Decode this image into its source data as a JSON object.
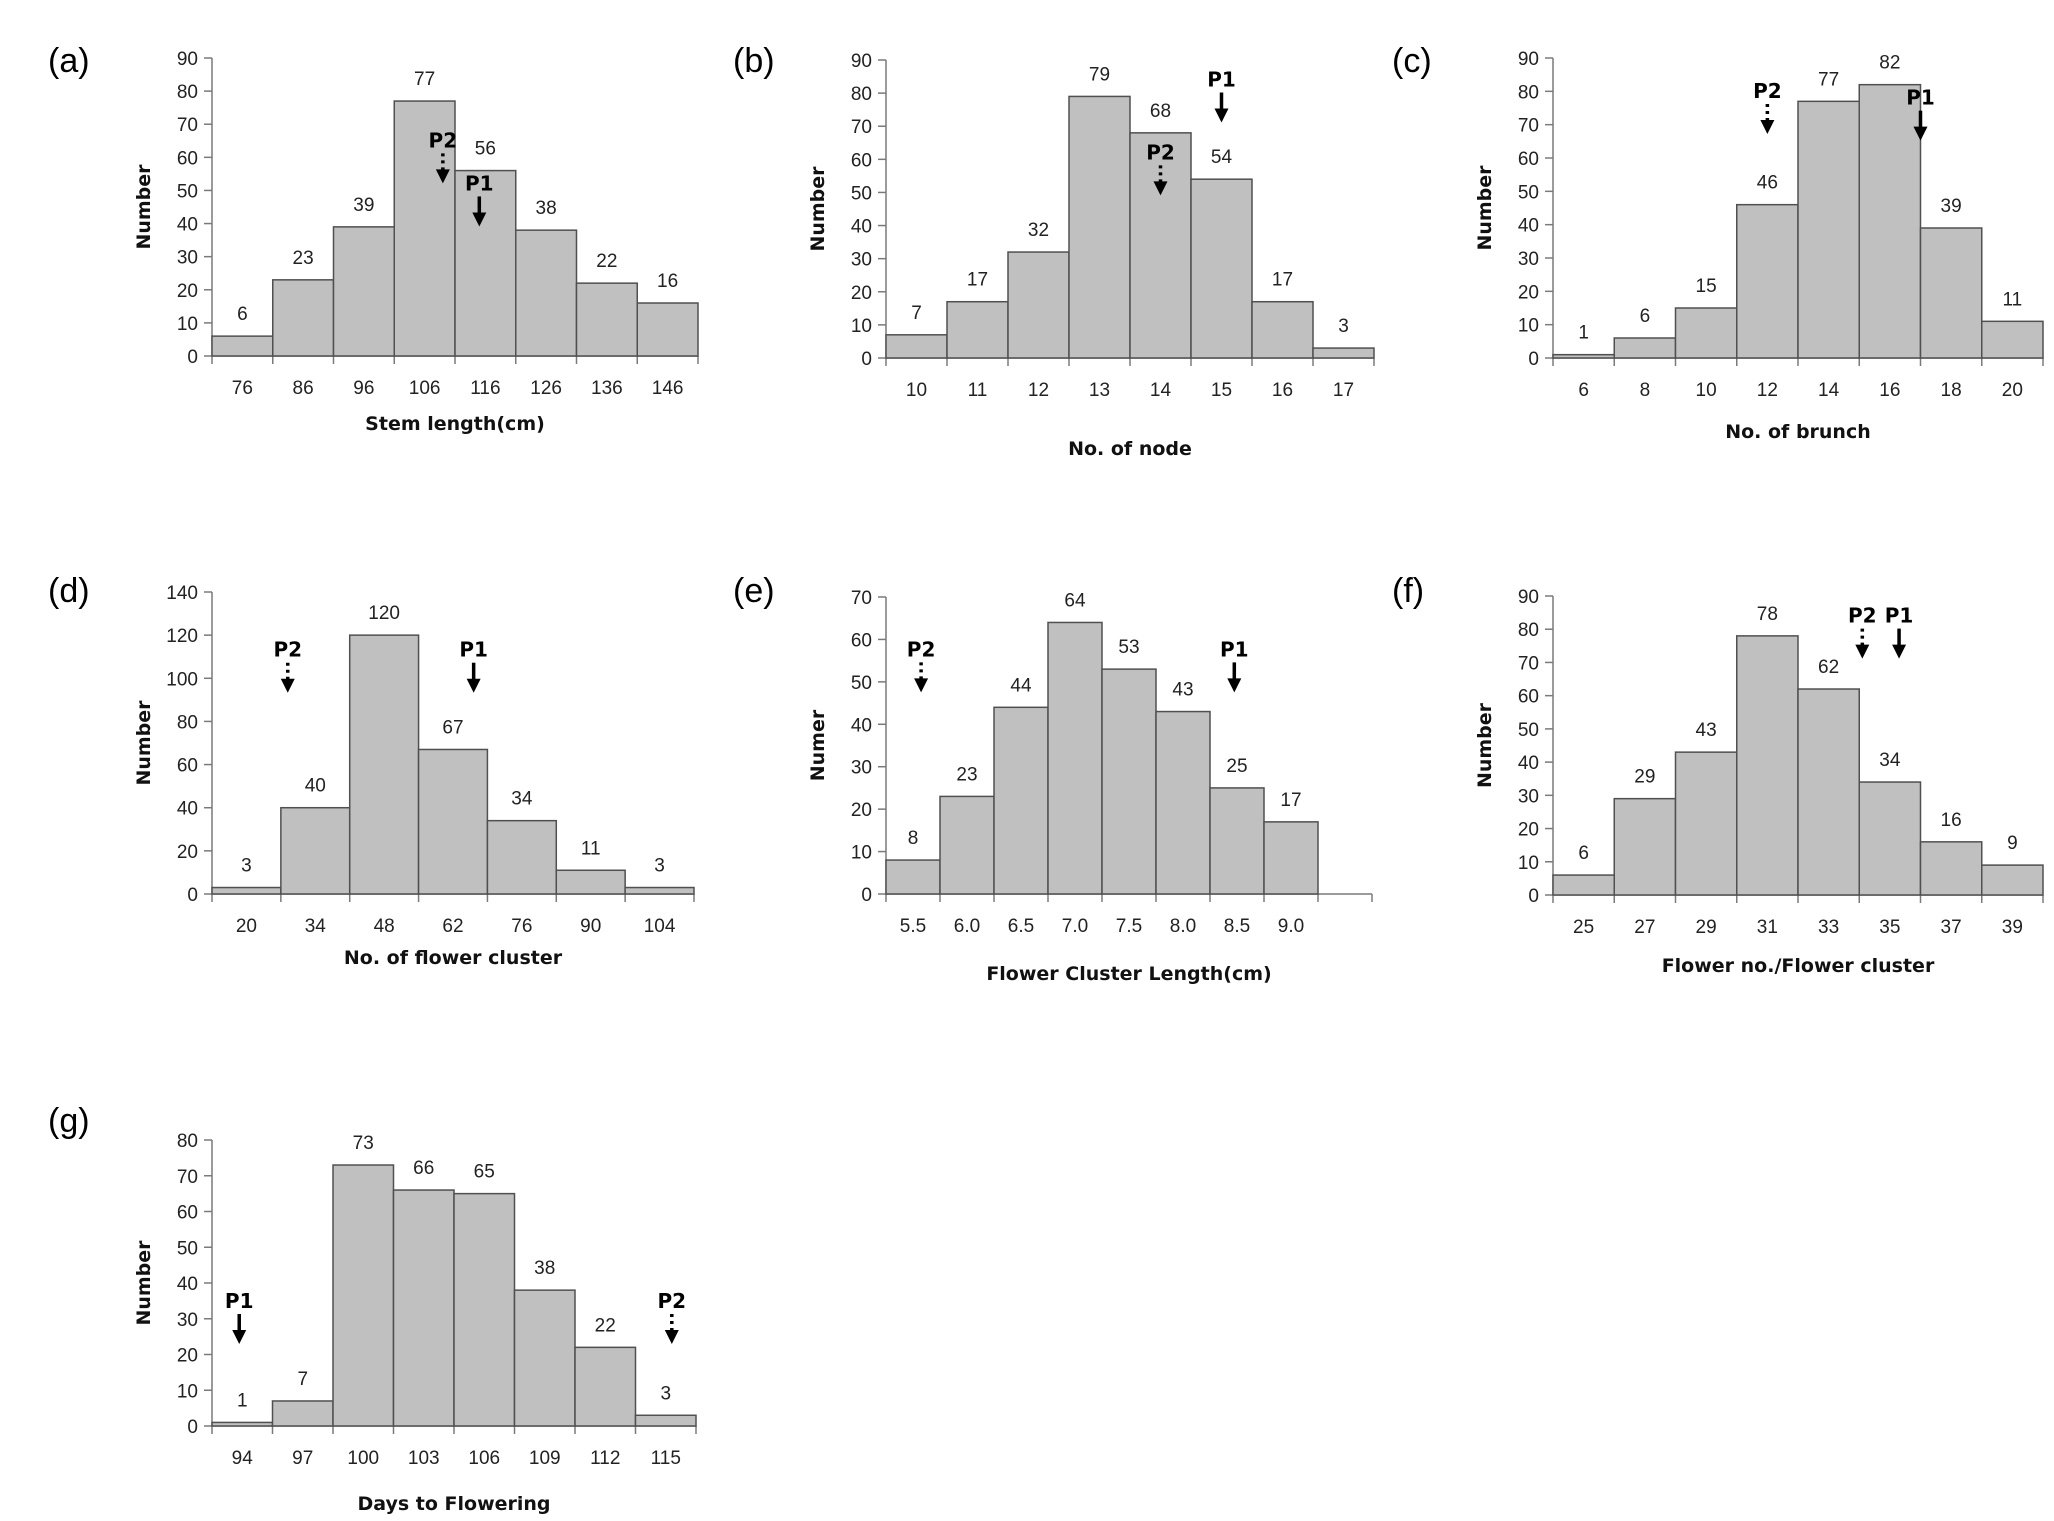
{
  "chart_data": [
    {
      "panel": "(a)",
      "type": "bar",
      "categories": [
        "76",
        "86",
        "96",
        "106",
        "116",
        "126",
        "136",
        "146"
      ],
      "values": [
        6,
        23,
        39,
        77,
        56,
        38,
        22,
        16
      ],
      "xlabel": "Stem length(cm)",
      "ylabel": "Number",
      "ylim": [
        0,
        90
      ],
      "yticks": [
        0,
        10,
        20,
        30,
        40,
        50,
        60,
        70,
        80,
        90
      ],
      "markers": [
        {
          "label": "P2",
          "style": "dotted",
          "x": 3.8,
          "y": 63
        },
        {
          "label": "P1",
          "style": "solid",
          "x": 4.4,
          "y": 50
        }
      ]
    },
    {
      "panel": "(b)",
      "type": "bar",
      "categories": [
        "10",
        "11",
        "12",
        "13",
        "14",
        "15",
        "16",
        "17"
      ],
      "values": [
        7,
        17,
        32,
        79,
        68,
        54,
        17,
        3
      ],
      "xlabel": "No. of node",
      "ylabel": "Number",
      "ylim": [
        0,
        90
      ],
      "yticks": [
        0,
        10,
        20,
        30,
        40,
        50,
        60,
        70,
        80,
        90
      ],
      "markers": [
        {
          "label": "P1",
          "style": "solid",
          "x": 5.5,
          "y": 82
        },
        {
          "label": "P2",
          "style": "dotted",
          "x": 4.5,
          "y": 60
        }
      ]
    },
    {
      "panel": "(c)",
      "type": "bar",
      "categories": [
        "6",
        "8",
        "10",
        "12",
        "14",
        "16",
        "18",
        "20"
      ],
      "values": [
        1,
        6,
        15,
        46,
        77,
        82,
        39,
        11
      ],
      "xlabel": "No. of brunch",
      "ylabel": "Number",
      "ylim": [
        0,
        90
      ],
      "yticks": [
        0,
        10,
        20,
        30,
        40,
        50,
        60,
        70,
        80,
        90
      ],
      "markers": [
        {
          "label": "P2",
          "style": "dotted",
          "x": 3.5,
          "y": 78
        },
        {
          "label": "P1",
          "style": "solid",
          "x": 6.0,
          "y": 76
        }
      ]
    },
    {
      "panel": "(d)",
      "type": "bar",
      "categories": [
        "20",
        "34",
        "48",
        "62",
        "76",
        "90",
        "104"
      ],
      "values": [
        3,
        40,
        120,
        67,
        34,
        11,
        3
      ],
      "xlabel": "No. of flower cluster",
      "ylabel": "Number",
      "ylim": [
        0,
        140
      ],
      "yticks": [
        0,
        20,
        40,
        60,
        80,
        100,
        120,
        140
      ],
      "markers": [
        {
          "label": "P2",
          "style": "dotted",
          "x": 1.1,
          "y": 110
        },
        {
          "label": "P1",
          "style": "solid",
          "x": 3.8,
          "y": 110
        }
      ]
    },
    {
      "panel": "(e)",
      "type": "bar",
      "categories": [
        "5.5",
        "6.0",
        "6.5",
        "7.0",
        "7.5",
        "8.0",
        "8.5",
        "9.0"
      ],
      "values": [
        8,
        23,
        44,
        64,
        53,
        43,
        25,
        17
      ],
      "xlabel": "Flower Cluster Length(cm)",
      "ylabel": "Numer",
      "ylim": [
        0,
        70
      ],
      "yticks": [
        0,
        10,
        20,
        30,
        40,
        50,
        60,
        70
      ],
      "extra_slot": true,
      "markers": [
        {
          "label": "P2",
          "style": "dotted",
          "x": 0.65,
          "y": 56
        },
        {
          "label": "P1",
          "style": "solid",
          "x": 6.45,
          "y": 56
        }
      ]
    },
    {
      "panel": "(f)",
      "type": "bar",
      "categories": [
        "25",
        "27",
        "29",
        "31",
        "33",
        "35",
        "37",
        "39"
      ],
      "values": [
        6,
        29,
        43,
        78,
        62,
        34,
        16,
        9
      ],
      "xlabel": "Flower no./Flower cluster",
      "ylabel": "Number",
      "ylim": [
        0,
        90
      ],
      "yticks": [
        0,
        10,
        20,
        30,
        40,
        50,
        60,
        70,
        80,
        90
      ],
      "markers": [
        {
          "label": "P2",
          "style": "dotted",
          "x": 5.05,
          "y": 82
        },
        {
          "label": "P1",
          "style": "solid",
          "x": 5.65,
          "y": 82
        }
      ]
    },
    {
      "panel": "(g)",
      "type": "bar",
      "categories": [
        "94",
        "97",
        "100",
        "103",
        "106",
        "109",
        "112",
        "115"
      ],
      "values": [
        1,
        7,
        73,
        66,
        65,
        38,
        22,
        3
      ],
      "xlabel": "Days to Flowering",
      "ylabel": "Number",
      "ylim": [
        0,
        80
      ],
      "yticks": [
        0,
        10,
        20,
        30,
        40,
        50,
        60,
        70,
        80
      ],
      "markers": [
        {
          "label": "P1",
          "style": "solid",
          "x": 0.45,
          "y": 33
        },
        {
          "label": "P2",
          "style": "dotted",
          "x": 7.6,
          "y": 33
        }
      ]
    }
  ]
}
